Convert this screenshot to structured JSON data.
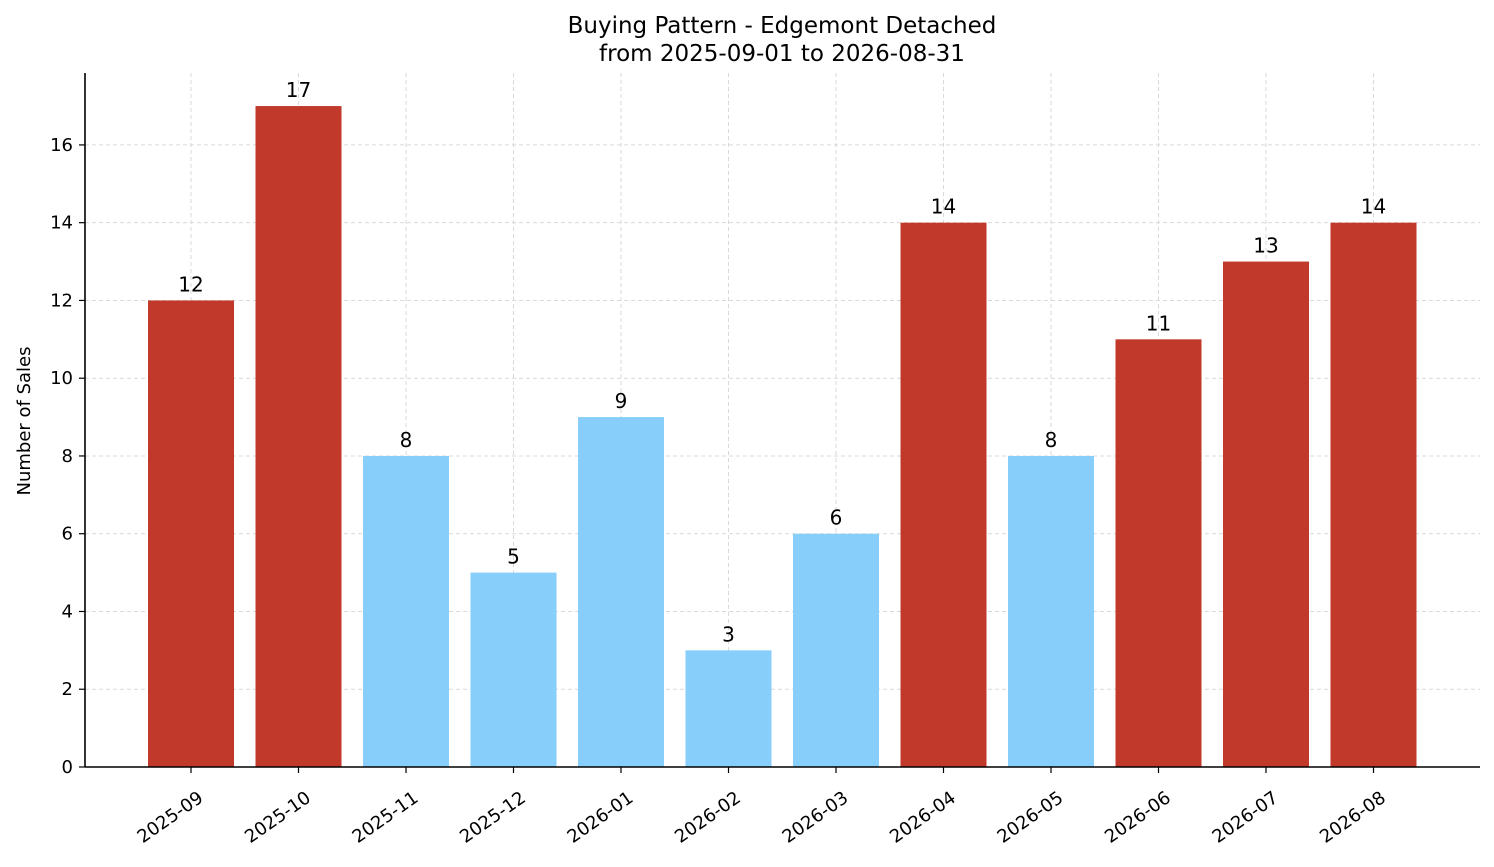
{
  "chart_data": {
    "type": "bar",
    "title": "Buying Pattern - Edgemont Detached",
    "subtitle": "from 2025-09-01 to 2026-08-31",
    "xlabel": "",
    "ylabel": "Number of Sales",
    "categories": [
      "2025-09",
      "2025-10",
      "2025-11",
      "2025-12",
      "2026-01",
      "2026-02",
      "2026-03",
      "2026-04",
      "2026-05",
      "2026-06",
      "2026-07",
      "2026-08"
    ],
    "values": [
      12,
      17,
      8,
      5,
      9,
      3,
      6,
      14,
      8,
      11,
      13,
      14
    ],
    "bar_colors": [
      "#c0392b",
      "#c0392b",
      "#87cefa",
      "#87cefa",
      "#87cefa",
      "#87cefa",
      "#87cefa",
      "#c0392b",
      "#87cefa",
      "#c0392b",
      "#c0392b",
      "#c0392b"
    ],
    "ylim": [
      0,
      17.85
    ],
    "yticks": [
      0,
      2,
      4,
      6,
      8,
      10,
      12,
      14,
      16
    ],
    "grid": true,
    "legend": "none",
    "data_labels": true
  }
}
